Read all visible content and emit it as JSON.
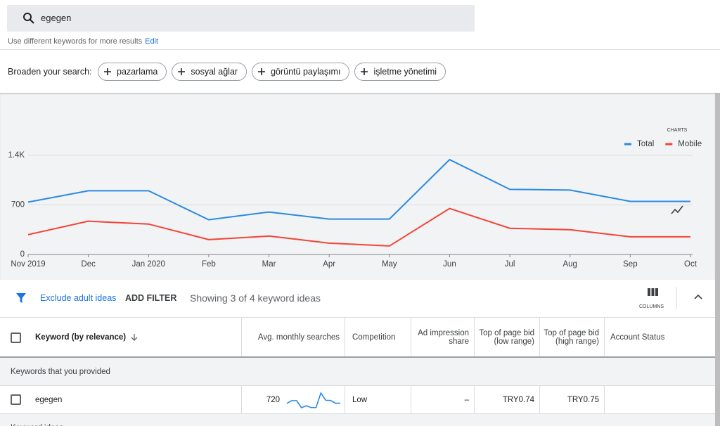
{
  "search": {
    "query": "egegen",
    "hint": "Use different keywords for more results",
    "edit": "Edit"
  },
  "broaden": {
    "label": "Broaden your search:",
    "chips": [
      "pazarlama",
      "sosyal ağlar",
      "görüntü paylaşımı",
      "işletme yönetimi"
    ]
  },
  "charts_button": "CHARTS",
  "chart_data": {
    "type": "line",
    "categories": [
      "Nov 2019",
      "Dec",
      "Jan 2020",
      "Feb",
      "Mar",
      "Apr",
      "May",
      "Jun",
      "Jul",
      "Aug",
      "Sep",
      "Oct"
    ],
    "series": [
      {
        "name": "Total",
        "color": "#2a8ae2",
        "values": [
          740,
          900,
          900,
          490,
          600,
          500,
          500,
          1340,
          920,
          910,
          750,
          750
        ]
      },
      {
        "name": "Mobile",
        "color": "#f44336",
        "values": [
          280,
          470,
          430,
          210,
          260,
          160,
          120,
          650,
          370,
          350,
          250,
          250
        ]
      }
    ],
    "ylim": [
      0,
      1400
    ],
    "yticks": [
      0,
      700,
      {
        "value": 1400,
        "label": "1.4K"
      }
    ],
    "grid": true,
    "legend": "top-right"
  },
  "filters": {
    "exclude": "Exclude adult ideas",
    "add": "ADD FILTER",
    "summary": "Showing 3 of 4 keyword ideas",
    "columns": "COLUMNS"
  },
  "table": {
    "headers": [
      "Keyword (by relevance)",
      "Avg. monthly searches",
      "Competition",
      "Ad impression share",
      "Top of page bid (low range)",
      "Top of page bid (high range)",
      "Account Status"
    ],
    "groups": [
      {
        "title": "Keywords that you provided",
        "rows": [
          [
            "egegen",
            720,
            "Low",
            "–",
            "TRY0.74",
            "TRY0.75"
          ]
        ]
      },
      {
        "title": "Keyword ideas"
      }
    ]
  }
}
